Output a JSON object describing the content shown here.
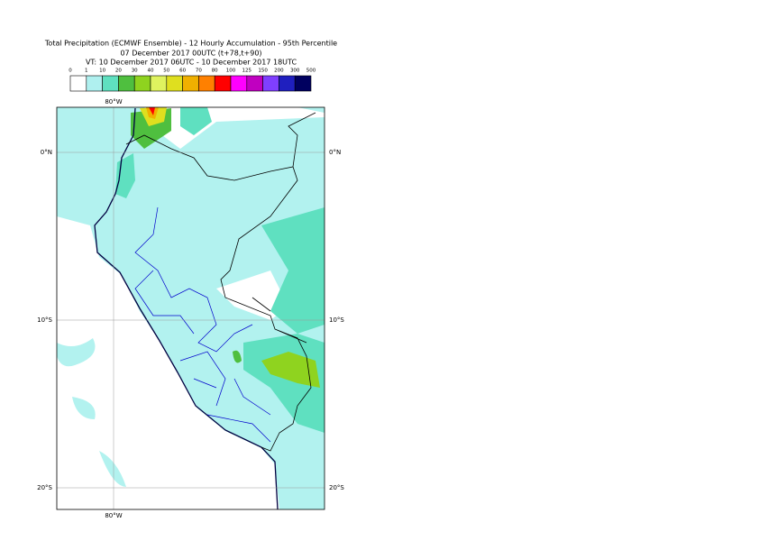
{
  "header": {
    "title": "Total Precipitation (ECMWF Ensemble) - 12 Hourly Accumulation - 95th Percentile",
    "subtitle": "07 December 2017 00UTC (t+78,t+90)",
    "valid_time": "VT: 10 December 2017 06UTC - 10 December 2017 18UTC"
  },
  "legend": {
    "labels": [
      "0",
      "1",
      "10",
      "20",
      "30",
      "40",
      "50",
      "60",
      "70",
      "80",
      "100",
      "125",
      "150",
      "200",
      "300",
      "500"
    ],
    "colors": [
      "#ffffff",
      "#aff0ef",
      "#5fe0c0",
      "#4fbf3f",
      "#8fd31f",
      "#dff35f",
      "#dfdf1f",
      "#f0b000",
      "#ff8000",
      "#ff0000",
      "#ff00ff",
      "#c000c0",
      "#7f3fff",
      "#1f1fbf",
      "#00005f"
    ]
  },
  "map": {
    "lat_labels": [
      "0°N",
      "10°S",
      "20°S"
    ],
    "lon_labels": [
      "80°W"
    ]
  }
}
